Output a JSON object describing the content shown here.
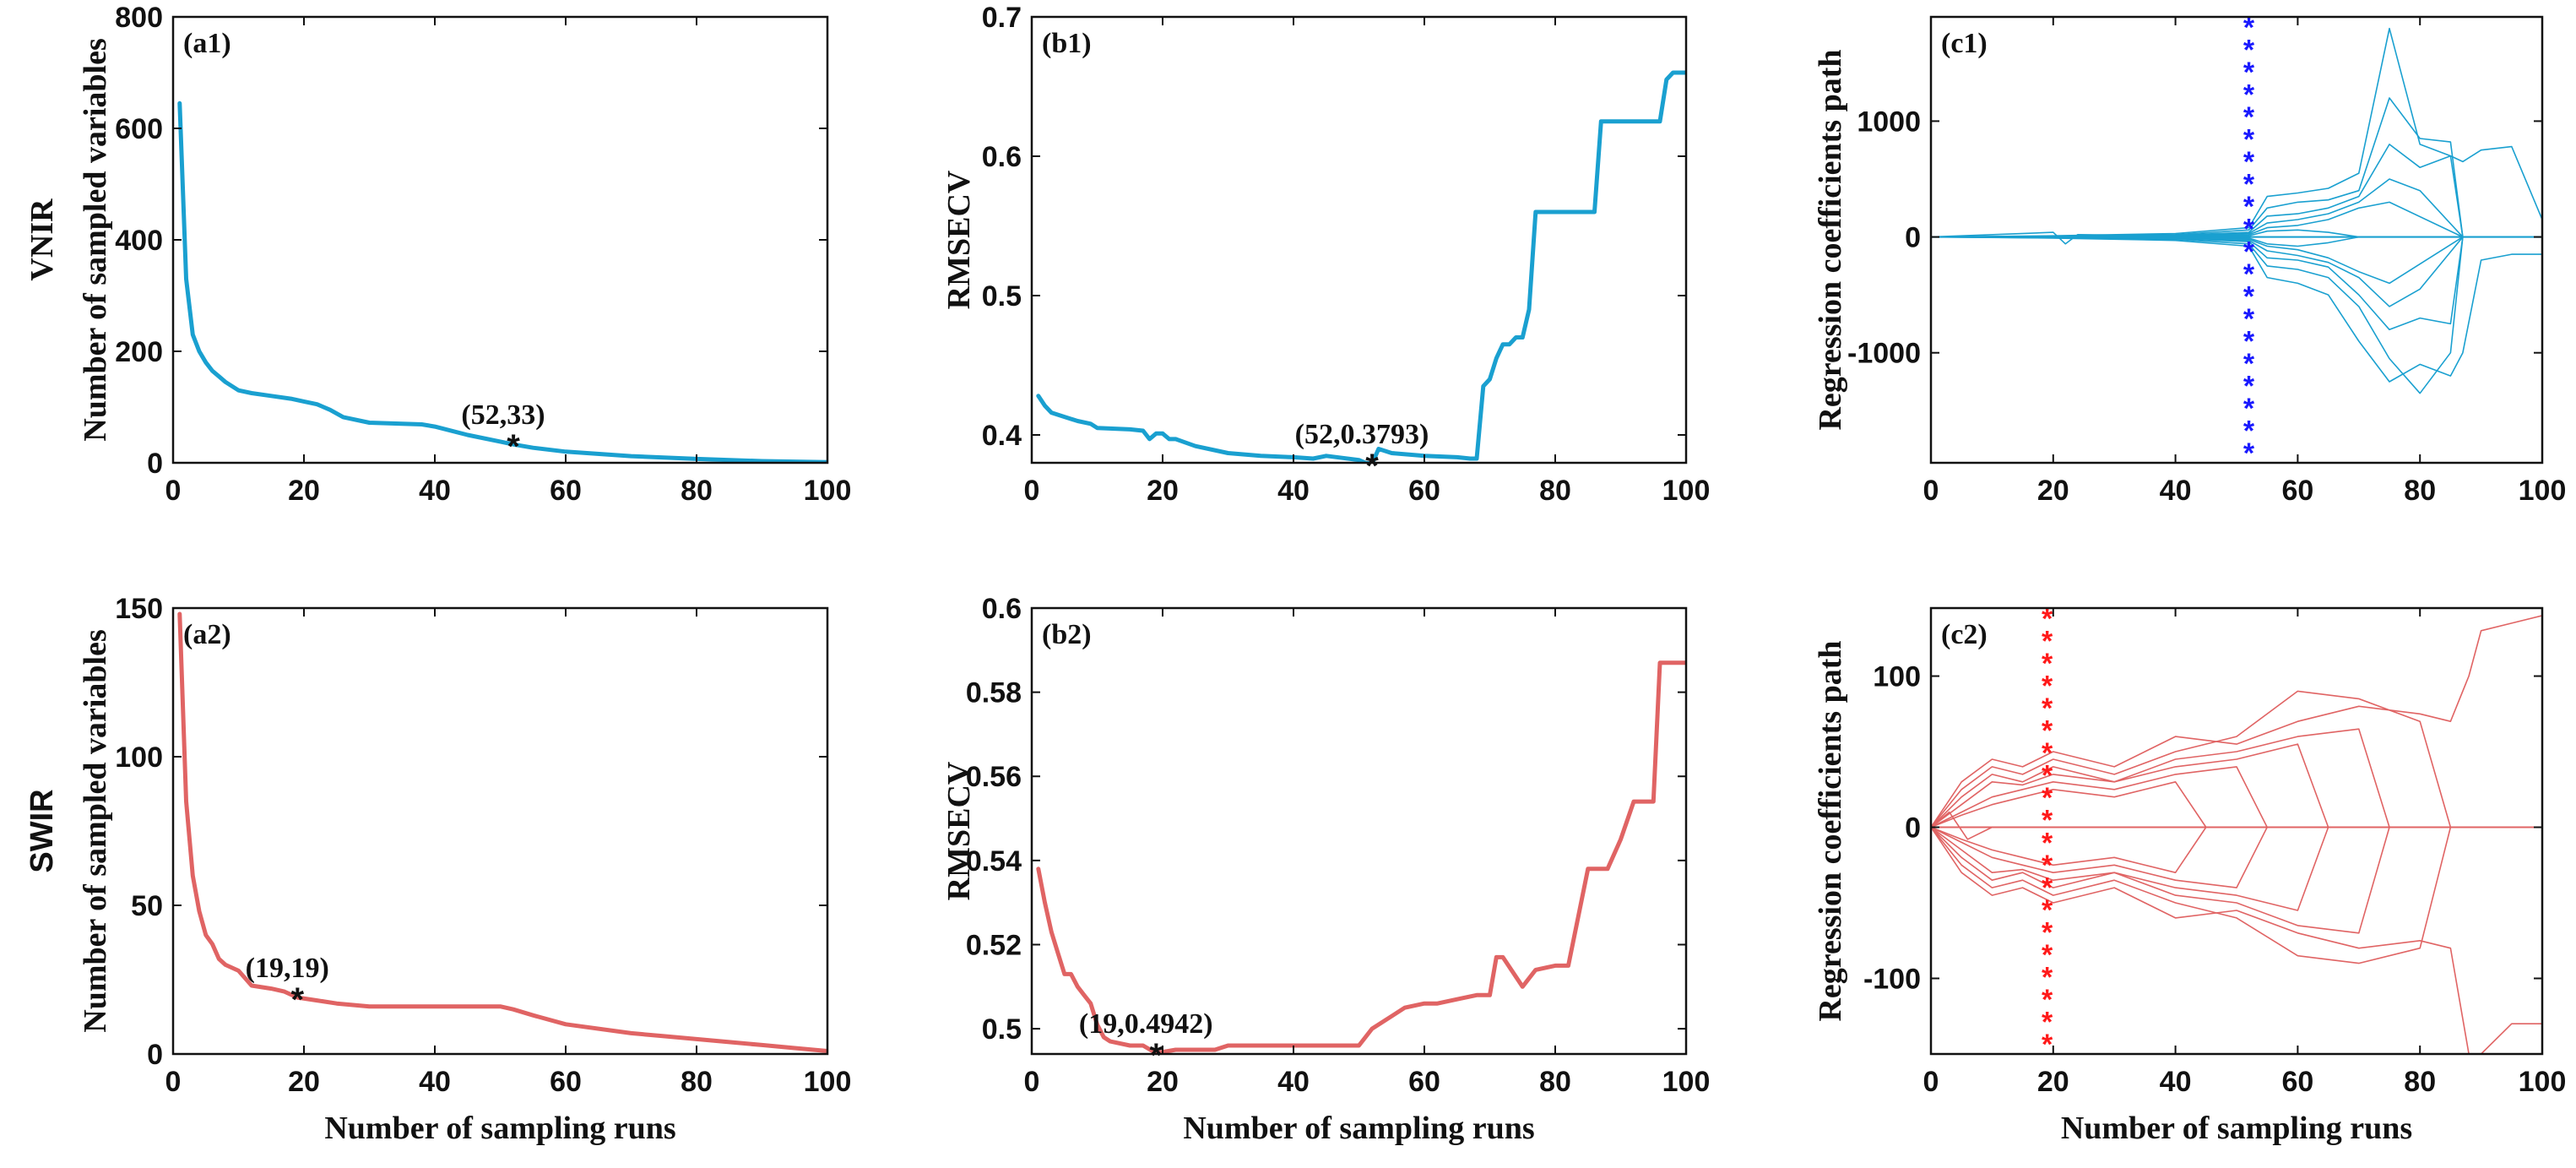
{
  "figure": {
    "row_labels": [
      {
        "id": "vnir",
        "text": "VNIR",
        "sans": false
      },
      {
        "id": "swir",
        "text": "SWIR",
        "sans": true
      }
    ]
  },
  "colors": {
    "blue": "#1aa0d0",
    "red": "#e06464",
    "marker_blue": "#1a1aff",
    "marker_red": "#ff1a1a",
    "axis": "#111111"
  },
  "chart_data": [
    {
      "id": "a1",
      "type": "line",
      "panel_label": "(a1)",
      "xlabel": "",
      "ylabel": "Number of sampled variables",
      "row_label": "VNIR",
      "xlim": [
        0,
        100
      ],
      "ylim": [
        0,
        800
      ],
      "xticks": [
        0,
        20,
        40,
        60,
        80,
        100
      ],
      "yticks": [
        0,
        200,
        400,
        600,
        800
      ],
      "color": "blue",
      "line_width": 5,
      "x": [
        1,
        2,
        3,
        4,
        5,
        6,
        7,
        8,
        10,
        12,
        15,
        18,
        20,
        22,
        24,
        26,
        30,
        35,
        38,
        40,
        45,
        50,
        52,
        55,
        60,
        70,
        80,
        90,
        100
      ],
      "values": [
        645,
        330,
        230,
        200,
        180,
        165,
        155,
        145,
        130,
        125,
        120,
        115,
        110,
        105,
        95,
        82,
        72,
        70,
        69,
        65,
        50,
        38,
        33,
        27,
        20,
        12,
        7,
        3,
        1
      ],
      "marker": {
        "x": 52,
        "y": 33,
        "label": "(52,33)"
      }
    },
    {
      "id": "b1",
      "type": "line",
      "panel_label": "(b1)",
      "xlabel": "",
      "ylabel": "RMSECV",
      "xlim": [
        0,
        100
      ],
      "ylim": [
        0.38,
        0.7
      ],
      "xticks": [
        0,
        20,
        40,
        60,
        80,
        100
      ],
      "yticks": [
        0.4,
        0.5,
        0.6,
        0.7
      ],
      "color": "blue",
      "line_width": 5,
      "x": [
        1,
        2,
        3,
        5,
        7,
        9,
        10,
        15,
        17,
        18,
        19,
        20,
        21,
        22,
        25,
        30,
        35,
        40,
        43,
        45,
        50,
        51,
        52,
        53,
        55,
        60,
        65,
        67,
        68,
        69,
        70,
        71,
        72,
        73,
        74,
        75,
        76,
        77,
        78,
        80,
        85,
        86,
        87,
        88,
        90,
        92,
        95,
        96,
        97,
        98,
        100
      ],
      "values": [
        0.428,
        0.421,
        0.416,
        0.413,
        0.41,
        0.408,
        0.405,
        0.404,
        0.403,
        0.397,
        0.401,
        0.401,
        0.397,
        0.397,
        0.392,
        0.387,
        0.385,
        0.384,
        0.383,
        0.385,
        0.382,
        0.38,
        0.3793,
        0.39,
        0.387,
        0.385,
        0.384,
        0.383,
        0.383,
        0.435,
        0.44,
        0.455,
        0.465,
        0.465,
        0.47,
        0.47,
        0.49,
        0.56,
        0.56,
        0.56,
        0.56,
        0.56,
        0.625,
        0.625,
        0.625,
        0.625,
        0.625,
        0.625,
        0.655,
        0.66,
        0.66
      ],
      "marker": {
        "x": 52,
        "y": 0.3793,
        "label": "(52,0.3793)"
      }
    },
    {
      "id": "c1",
      "type": "line",
      "panel_label": "(c1)",
      "xlabel": "",
      "ylabel": "Regression coefficients path",
      "xlim": [
        0,
        100
      ],
      "ylim": [
        -1950,
        1900
      ],
      "xticks": [
        0,
        20,
        40,
        60,
        80,
        100
      ],
      "yticks": [
        -1000,
        0,
        1000
      ],
      "color": "blue",
      "line_width": 1.6,
      "selected_run": 52,
      "selected_marker_color": "marker_blue",
      "series_note": "many coefficient traces",
      "series": [
        {
          "x": [
            0,
            20,
            40,
            52,
            55,
            60,
            65,
            70,
            75,
            80,
            85,
            87,
            90,
            95,
            100
          ],
          "values": [
            0,
            10,
            30,
            80,
            350,
            380,
            420,
            550,
            1800,
            800,
            700,
            650,
            750,
            780,
            150
          ]
        },
        {
          "x": [
            0,
            20,
            40,
            52,
            55,
            60,
            65,
            70,
            75,
            80,
            85,
            87,
            90,
            95,
            100
          ],
          "values": [
            0,
            -10,
            -30,
            -80,
            -350,
            -400,
            -500,
            -900,
            -1250,
            -1100,
            -1200,
            -1000,
            -200,
            -150,
            -150
          ]
        },
        {
          "x": [
            0,
            20,
            40,
            52,
            55,
            60,
            65,
            70,
            75,
            80,
            85,
            87,
            90,
            100
          ],
          "values": [
            0,
            8,
            20,
            60,
            250,
            300,
            320,
            400,
            1200,
            850,
            820,
            0,
            0,
            0
          ]
        },
        {
          "x": [
            0,
            20,
            40,
            52,
            55,
            60,
            65,
            70,
            75,
            80,
            85,
            87,
            90,
            100
          ],
          "values": [
            0,
            -8,
            -20,
            -60,
            -250,
            -280,
            -350,
            -600,
            -1050,
            -1350,
            -1000,
            0,
            0,
            0
          ]
        },
        {
          "x": [
            0,
            20,
            40,
            52,
            55,
            60,
            65,
            70,
            75,
            80,
            85,
            87,
            100
          ],
          "values": [
            0,
            5,
            15,
            40,
            180,
            200,
            250,
            350,
            800,
            600,
            700,
            0,
            0
          ]
        },
        {
          "x": [
            0,
            20,
            40,
            52,
            55,
            60,
            65,
            70,
            75,
            80,
            85,
            87,
            100
          ],
          "values": [
            0,
            -5,
            -15,
            -40,
            -180,
            -200,
            -260,
            -500,
            -800,
            -700,
            -750,
            0,
            0
          ]
        },
        {
          "x": [
            0,
            20,
            40,
            52,
            55,
            60,
            65,
            70,
            75,
            80,
            87,
            100
          ],
          "values": [
            0,
            4,
            10,
            30,
            120,
            150,
            200,
            300,
            500,
            400,
            0,
            0
          ]
        },
        {
          "x": [
            0,
            20,
            40,
            52,
            55,
            60,
            65,
            70,
            75,
            80,
            87,
            100
          ],
          "values": [
            0,
            -4,
            -10,
            -30,
            -120,
            -160,
            -220,
            -350,
            -600,
            -450,
            0,
            0
          ]
        },
        {
          "x": [
            0,
            20,
            40,
            52,
            55,
            60,
            65,
            70,
            75,
            87,
            100
          ],
          "values": [
            0,
            3,
            8,
            20,
            80,
            100,
            150,
            250,
            300,
            0,
            0
          ]
        },
        {
          "x": [
            0,
            20,
            40,
            52,
            55,
            60,
            65,
            70,
            75,
            87,
            100
          ],
          "values": [
            0,
            -3,
            -8,
            -20,
            -80,
            -110,
            -180,
            -300,
            -400,
            0,
            0
          ]
        },
        {
          "x": [
            0,
            20,
            40,
            52,
            55,
            60,
            65,
            70,
            100
          ],
          "values": [
            0,
            2,
            5,
            10,
            50,
            60,
            40,
            0,
            0
          ]
        },
        {
          "x": [
            0,
            20,
            40,
            52,
            55,
            60,
            65,
            70,
            100
          ],
          "values": [
            0,
            -2,
            -5,
            -10,
            -60,
            -80,
            -50,
            0,
            0
          ]
        },
        {
          "x": [
            0,
            20,
            22,
            24,
            40,
            52,
            100
          ],
          "values": [
            0,
            40,
            -60,
            20,
            10,
            0,
            0
          ]
        }
      ]
    },
    {
      "id": "a2",
      "type": "line",
      "panel_label": "(a2)",
      "xlabel": "Number of sampling runs",
      "ylabel": "Number of sampled variables",
      "row_label": "SWIR",
      "xlim": [
        0,
        100
      ],
      "ylim": [
        0,
        150
      ],
      "xticks": [
        0,
        20,
        40,
        60,
        80,
        100
      ],
      "yticks": [
        0,
        50,
        100,
        150
      ],
      "color": "red",
      "line_width": 5,
      "x": [
        1,
        2,
        3,
        4,
        5,
        6,
        7,
        8,
        10,
        12,
        15,
        17,
        19,
        22,
        25,
        30,
        40,
        50,
        52,
        55,
        60,
        70,
        75,
        80,
        85,
        90,
        95,
        100
      ],
      "values": [
        148,
        85,
        60,
        48,
        40,
        37,
        32,
        30,
        28,
        23,
        22,
        21,
        19,
        18,
        17,
        16,
        16,
        16,
        15,
        13,
        10,
        7,
        6,
        5,
        4,
        3,
        2,
        1
      ],
      "marker": {
        "x": 19,
        "y": 19,
        "label": "(19,19)"
      }
    },
    {
      "id": "b2",
      "type": "line",
      "panel_label": "(b2)",
      "xlabel": "Number of sampling runs",
      "ylabel": "RMSECV",
      "xlim": [
        0,
        100
      ],
      "ylim": [
        0.494,
        0.6
      ],
      "xticks": [
        0,
        20,
        40,
        60,
        80,
        100
      ],
      "yticks": [
        0.5,
        0.52,
        0.54,
        0.56,
        0.58,
        0.6
      ],
      "color": "red",
      "line_width": 5,
      "x": [
        1,
        2,
        3,
        4,
        5,
        6,
        7,
        8,
        9,
        10,
        11,
        12,
        15,
        17,
        19,
        22,
        25,
        28,
        30,
        35,
        40,
        45,
        50,
        52,
        55,
        57,
        60,
        62,
        65,
        68,
        70,
        71,
        72,
        75,
        77,
        80,
        82,
        85,
        86,
        88,
        90,
        92,
        95,
        96,
        100
      ],
      "values": [
        0.538,
        0.53,
        0.523,
        0.518,
        0.513,
        0.513,
        0.51,
        0.508,
        0.506,
        0.501,
        0.498,
        0.497,
        0.496,
        0.496,
        0.4942,
        0.495,
        0.495,
        0.495,
        0.496,
        0.496,
        0.496,
        0.496,
        0.496,
        0.5,
        0.503,
        0.505,
        0.506,
        0.506,
        0.507,
        0.508,
        0.508,
        0.517,
        0.517,
        0.51,
        0.514,
        0.515,
        0.515,
        0.538,
        0.538,
        0.538,
        0.545,
        0.554,
        0.554,
        0.587,
        0.587
      ],
      "marker": {
        "x": 19,
        "y": 0.4942,
        "label": "(19,0.4942)"
      }
    },
    {
      "id": "c2",
      "type": "line",
      "panel_label": "(c2)",
      "xlabel": "Number of sampling runs",
      "ylabel": "Regression coefficients path",
      "xlim": [
        0,
        100
      ],
      "ylim": [
        -150,
        145
      ],
      "xticks": [
        0,
        20,
        40,
        60,
        80,
        100
      ],
      "yticks": [
        -100,
        0,
        100
      ],
      "color": "red",
      "line_width": 1.6,
      "selected_run": 19,
      "selected_marker_color": "marker_red",
      "series_note": "many coefficient traces",
      "series": [
        {
          "x": [
            0,
            5,
            10,
            15,
            20,
            30,
            40,
            50,
            60,
            70,
            80,
            85,
            88,
            90,
            95,
            100
          ],
          "values": [
            0,
            30,
            45,
            40,
            50,
            40,
            60,
            55,
            70,
            80,
            75,
            70,
            100,
            130,
            135,
            140
          ]
        },
        {
          "x": [
            0,
            5,
            10,
            15,
            20,
            30,
            40,
            50,
            60,
            70,
            80,
            85,
            88,
            90,
            95,
            100
          ],
          "values": [
            0,
            -30,
            -45,
            -40,
            -50,
            -40,
            -60,
            -55,
            -70,
            -80,
            -75,
            -80,
            -150,
            -150,
            -130,
            -130
          ]
        },
        {
          "x": [
            0,
            5,
            10,
            15,
            20,
            30,
            40,
            50,
            60,
            70,
            80,
            85,
            100
          ],
          "values": [
            0,
            25,
            40,
            35,
            45,
            35,
            50,
            60,
            90,
            85,
            70,
            0,
            0
          ]
        },
        {
          "x": [
            0,
            5,
            10,
            15,
            20,
            30,
            40,
            50,
            60,
            70,
            80,
            85,
            100
          ],
          "values": [
            0,
            -25,
            -40,
            -35,
            -45,
            -35,
            -50,
            -60,
            -85,
            -90,
            -80,
            0,
            0
          ]
        },
        {
          "x": [
            0,
            5,
            10,
            15,
            20,
            30,
            40,
            50,
            60,
            70,
            75,
            100
          ],
          "values": [
            0,
            20,
            35,
            30,
            40,
            30,
            45,
            50,
            60,
            65,
            0,
            0
          ]
        },
        {
          "x": [
            0,
            5,
            10,
            15,
            20,
            30,
            40,
            50,
            60,
            70,
            75,
            100
          ],
          "values": [
            0,
            -20,
            -35,
            -30,
            -40,
            -30,
            -45,
            -50,
            -65,
            -70,
            0,
            0
          ]
        },
        {
          "x": [
            0,
            5,
            10,
            15,
            20,
            30,
            40,
            50,
            60,
            65,
            100
          ],
          "values": [
            0,
            15,
            30,
            28,
            35,
            30,
            40,
            45,
            55,
            0,
            0
          ]
        },
        {
          "x": [
            0,
            5,
            10,
            15,
            20,
            30,
            40,
            50,
            60,
            65,
            100
          ],
          "values": [
            0,
            -15,
            -30,
            -28,
            -35,
            -30,
            -40,
            -45,
            -55,
            0,
            0
          ]
        },
        {
          "x": [
            0,
            5,
            10,
            15,
            20,
            30,
            40,
            50,
            55,
            100
          ],
          "values": [
            0,
            10,
            20,
            25,
            30,
            25,
            35,
            40,
            0,
            0
          ]
        },
        {
          "x": [
            0,
            5,
            10,
            15,
            20,
            30,
            40,
            50,
            55,
            100
          ],
          "values": [
            0,
            -10,
            -20,
            -25,
            -30,
            -25,
            -35,
            -40,
            0,
            0
          ]
        },
        {
          "x": [
            0,
            5,
            10,
            15,
            20,
            30,
            40,
            45,
            100
          ],
          "values": [
            0,
            8,
            15,
            20,
            25,
            20,
            30,
            0,
            0
          ]
        },
        {
          "x": [
            0,
            5,
            10,
            15,
            20,
            30,
            40,
            45,
            100
          ],
          "values": [
            0,
            -8,
            -15,
            -20,
            -25,
            -20,
            -30,
            0,
            0
          ]
        },
        {
          "x": [
            0,
            3,
            6,
            10,
            100
          ],
          "values": [
            0,
            10,
            -8,
            0,
            0
          ]
        }
      ]
    }
  ]
}
